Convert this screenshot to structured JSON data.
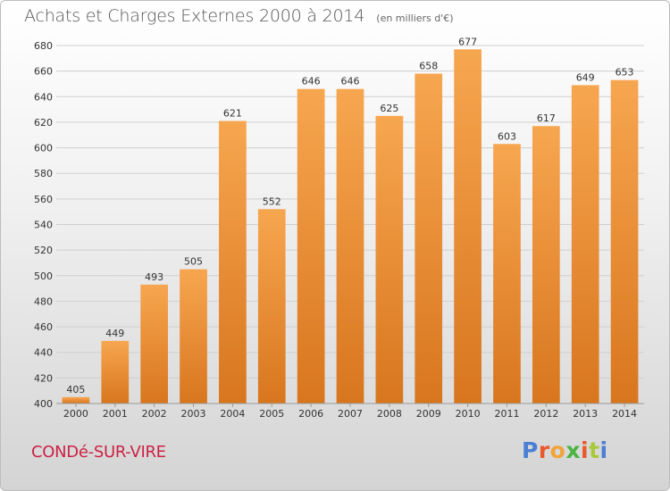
{
  "title": {
    "main": "Achats et Charges Externes 2000 à 2014",
    "unit": "(en milliers d'€)"
  },
  "commune": "CONDé-SUR-VIRE",
  "logo": {
    "text": "Proxiti",
    "letter_colors": [
      "#4a7fd4",
      "#e8592b",
      "#f2a33a",
      "#4bb543",
      "#e8592b",
      "#a8c93c",
      "#4a7fd4"
    ]
  },
  "colors": {
    "bar_light": "#f7a650",
    "bar_dark": "#d8761e",
    "grid": "#cfcfcf",
    "axis_text": "#333333"
  },
  "chart_data": {
    "type": "bar",
    "title": "Achats et Charges Externes 2000 à 2014",
    "subtitle": "(en milliers d'€)",
    "xlabel": "",
    "ylabel": "",
    "categories": [
      "2000",
      "2001",
      "2002",
      "2003",
      "2004",
      "2005",
      "2006",
      "2007",
      "2008",
      "2009",
      "2010",
      "2011",
      "2012",
      "2013",
      "2014"
    ],
    "values": [
      405,
      449,
      493,
      505,
      621,
      552,
      646,
      646,
      625,
      658,
      677,
      603,
      617,
      649,
      653
    ],
    "ylim": [
      400,
      680
    ],
    "yticks": [
      400,
      420,
      440,
      460,
      480,
      500,
      520,
      540,
      560,
      580,
      600,
      620,
      640,
      660,
      680
    ],
    "grid": true,
    "legend": "none",
    "data_labels": true
  }
}
